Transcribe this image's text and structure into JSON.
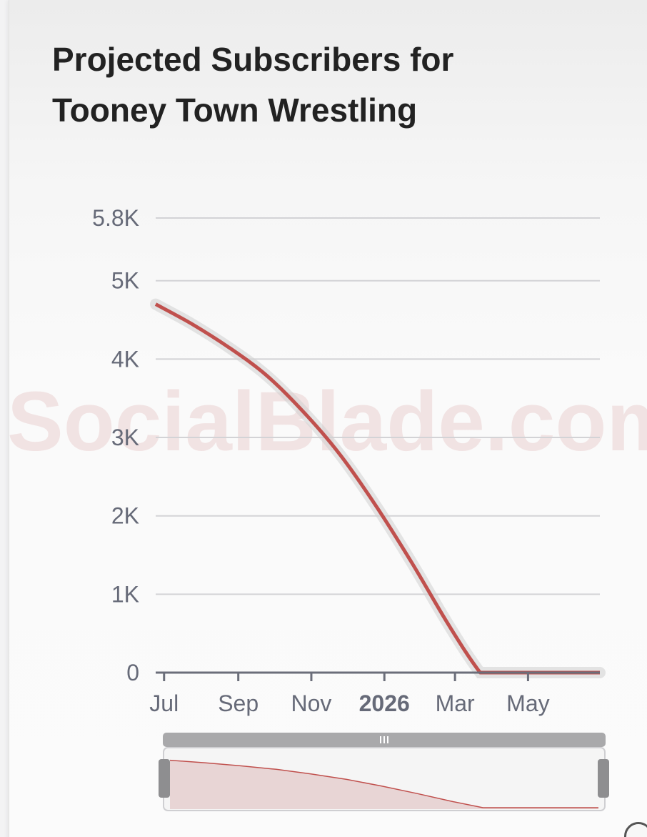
{
  "chart_data": {
    "type": "area",
    "title": "Projected Subscribers for Tooney Town Wrestling",
    "watermark": "SocialBlade.com",
    "x_type": "date",
    "x_ticks": [
      {
        "label": "Jul",
        "date": "2025-07-01",
        "bold": false
      },
      {
        "label": "Sep",
        "date": "2025-09-01",
        "bold": false
      },
      {
        "label": "Nov",
        "date": "2025-11-01",
        "bold": false
      },
      {
        "label": "2026",
        "date": "2026-01-01",
        "bold": true
      },
      {
        "label": "Mar",
        "date": "2026-03-01",
        "bold": false
      },
      {
        "label": "May",
        "date": "2026-05-01",
        "bold": false
      }
    ],
    "y_ticks": [
      {
        "label": "0",
        "value": 0
      },
      {
        "label": "1K",
        "value": 1000
      },
      {
        "label": "2K",
        "value": 2000
      },
      {
        "label": "3K",
        "value": 3000
      },
      {
        "label": "4K",
        "value": 4000
      },
      {
        "label": "5K",
        "value": 5000
      },
      {
        "label": "5.8K",
        "value": 5800
      }
    ],
    "ylim": [
      0,
      5800
    ],
    "xlim": [
      "2025-06-24",
      "2026-06-30"
    ],
    "grid": true,
    "series": [
      {
        "color": "#c0504d",
        "points": [
          {
            "date": "2025-06-24",
            "value": 4700
          },
          {
            "date": "2025-07-24",
            "value": 4450
          },
          {
            "date": "2025-08-24",
            "value": 4150
          },
          {
            "date": "2025-09-24",
            "value": 3800
          },
          {
            "date": "2025-10-24",
            "value": 3350
          },
          {
            "date": "2025-11-24",
            "value": 2800
          },
          {
            "date": "2025-12-24",
            "value": 2150
          },
          {
            "date": "2026-01-24",
            "value": 1400
          },
          {
            "date": "2026-02-24",
            "value": 600
          },
          {
            "date": "2026-03-22",
            "value": 0
          },
          {
            "date": "2026-04-24",
            "value": 0
          },
          {
            "date": "2026-05-24",
            "value": 0
          },
          {
            "date": "2026-06-30",
            "value": 0
          }
        ]
      }
    ],
    "confidence_band_color": "#d0d0d0",
    "navigator_fill": "#e8d5d5",
    "navigator_line_color": "#c0504d"
  }
}
